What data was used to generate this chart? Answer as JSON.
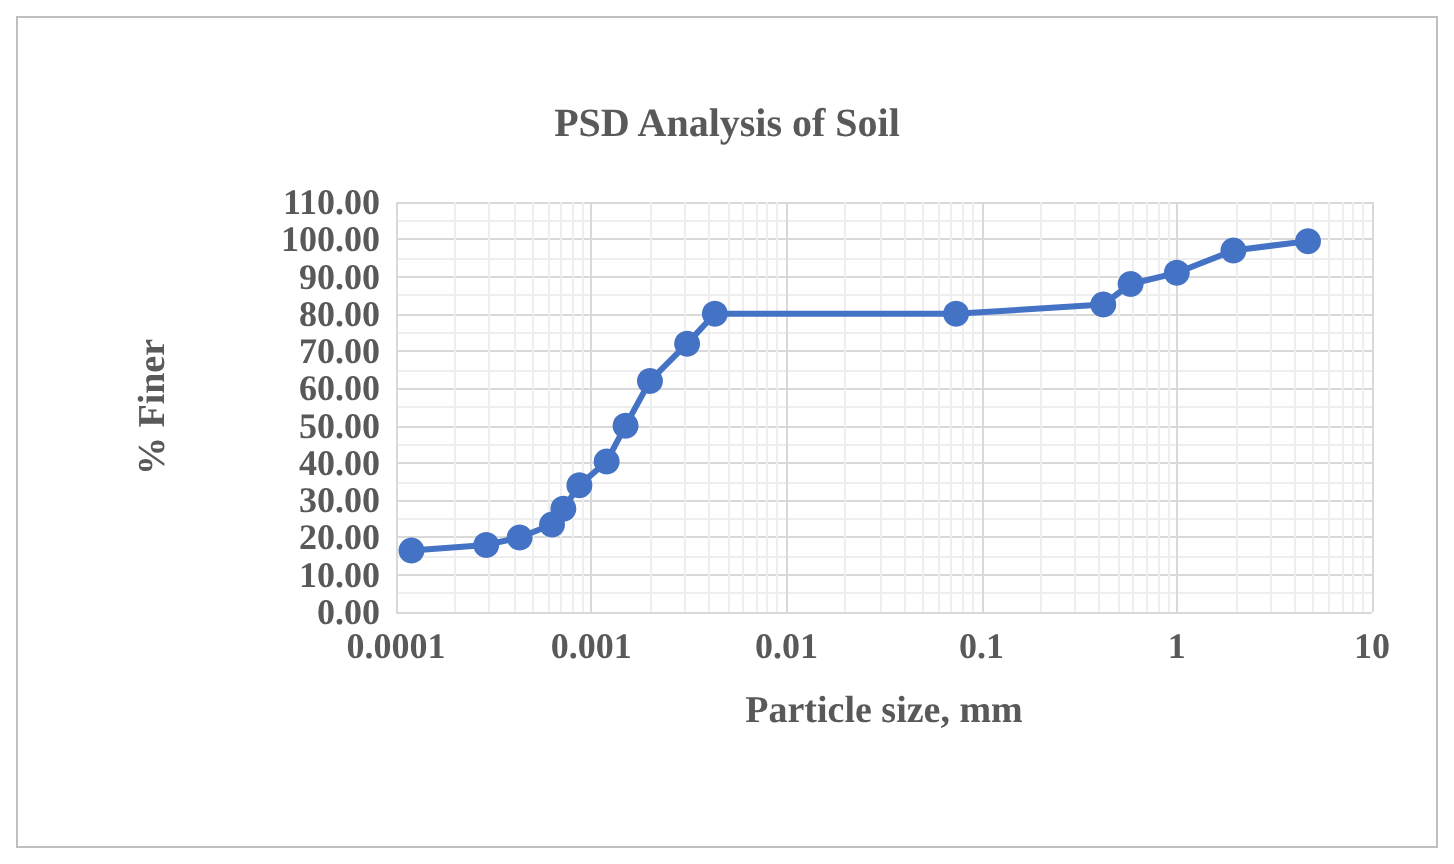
{
  "chart_data": {
    "type": "line",
    "title": "PSD Analysis of Soil",
    "xlabel": "Particle size, mm",
    "ylabel": "% Finer",
    "log": "x",
    "grid": true,
    "marker": "circle",
    "xlim": [
      0.0001,
      10
    ],
    "xticks": [
      0.0001,
      0.001,
      0.01,
      0.1,
      1,
      10
    ],
    "ylim": [
      0,
      110
    ],
    "yticks": [
      {
        "value": 0,
        "label": "0.00"
      },
      {
        "value": 10,
        "label": "10.00"
      },
      {
        "value": 20,
        "label": "20.00"
      },
      {
        "value": 30,
        "label": "30.00"
      },
      {
        "value": 40,
        "label": "40.00"
      },
      {
        "value": 50,
        "label": "50.00"
      },
      {
        "value": 60,
        "label": "60.00"
      },
      {
        "value": 70,
        "label": "70.00"
      },
      {
        "value": 80,
        "label": "80.00"
      },
      {
        "value": 90,
        "label": "90.00"
      },
      {
        "value": 100,
        "label": "100.00"
      },
      {
        "value": 110,
        "label": "110.00"
      }
    ],
    "x": [
      0.00012,
      0.00029,
      0.00043,
      0.00063,
      0.00072,
      0.00087,
      0.0012,
      0.0015,
      0.002,
      0.0031,
      0.0043,
      0.074,
      0.42,
      0.58,
      1.0,
      1.95,
      4.7
    ],
    "series": [
      {
        "color": "#4472c4",
        "values": [
          16.5,
          18,
          20,
          23.5,
          27.7,
          34,
          40.4,
          50,
          62,
          72,
          80,
          80,
          82.5,
          88,
          91,
          97,
          99.5
        ]
      }
    ]
  }
}
